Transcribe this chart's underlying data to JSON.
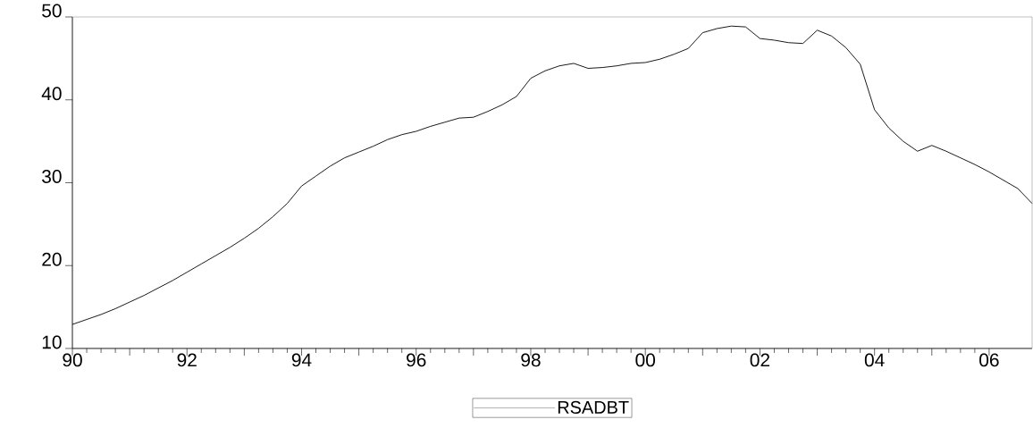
{
  "chart_data": {
    "type": "line",
    "x": [
      1990.0,
      1990.25,
      1990.5,
      1990.75,
      1991.0,
      1991.25,
      1991.5,
      1991.75,
      1992.0,
      1992.25,
      1992.5,
      1992.75,
      1993.0,
      1993.25,
      1993.5,
      1993.75,
      1994.0,
      1994.25,
      1994.5,
      1994.75,
      1995.0,
      1995.25,
      1995.5,
      1995.75,
      1996.0,
      1996.25,
      1996.5,
      1996.75,
      1997.0,
      1997.25,
      1997.5,
      1997.75,
      1998.0,
      1998.25,
      1998.5,
      1998.75,
      1999.0,
      1999.25,
      1999.5,
      1999.75,
      2000.0,
      2000.25,
      2000.5,
      2000.75,
      2001.0,
      2001.25,
      2001.5,
      2001.75,
      2002.0,
      2002.25,
      2002.5,
      2002.75,
      2003.0,
      2003.25,
      2003.5,
      2003.75,
      2004.0,
      2004.25,
      2004.5,
      2004.75,
      2005.0,
      2005.25,
      2005.5,
      2005.75,
      2006.0,
      2006.25,
      2006.5,
      2006.75
    ],
    "series": [
      {
        "name": "RSADBT",
        "color": "#000000",
        "values": [
          12.9,
          13.5,
          14.1,
          14.8,
          15.6,
          16.4,
          17.3,
          18.2,
          19.2,
          20.2,
          21.2,
          22.2,
          23.3,
          24.5,
          25.9,
          27.5,
          29.6,
          30.8,
          32.0,
          33.0,
          33.7,
          34.4,
          35.2,
          35.8,
          36.2,
          36.8,
          37.3,
          37.8,
          37.9,
          38.6,
          39.4,
          40.4,
          42.6,
          43.5,
          44.1,
          44.4,
          43.8,
          43.9,
          44.1,
          44.4,
          44.5,
          44.9,
          45.5,
          46.2,
          48.1,
          48.6,
          48.9,
          48.8,
          47.4,
          47.2,
          46.9,
          46.8,
          48.4,
          47.7,
          46.3,
          44.3,
          38.8,
          36.6,
          35.0,
          33.8,
          34.5,
          33.8,
          33.0,
          32.2,
          31.3,
          30.3,
          29.3,
          27.5
        ]
      }
    ],
    "xlim": [
      1990,
      2006.75
    ],
    "xticks": [
      {
        "value": 1990,
        "label": "90"
      },
      {
        "value": 1991,
        "label": null
      },
      {
        "value": 1992,
        "label": "92"
      },
      {
        "value": 1993,
        "label": null
      },
      {
        "value": 1994,
        "label": "94"
      },
      {
        "value": 1995,
        "label": null
      },
      {
        "value": 1996,
        "label": "96"
      },
      {
        "value": 1997,
        "label": null
      },
      {
        "value": 1998,
        "label": "98"
      },
      {
        "value": 1999,
        "label": null
      },
      {
        "value": 2000,
        "label": "00"
      },
      {
        "value": 2001,
        "label": null
      },
      {
        "value": 2002,
        "label": "02"
      },
      {
        "value": 2003,
        "label": null
      },
      {
        "value": 2004,
        "label": "04"
      },
      {
        "value": 2005,
        "label": null
      },
      {
        "value": 2006,
        "label": "06"
      }
    ],
    "ylim": [
      10,
      50
    ],
    "yticks": [
      10,
      20,
      30,
      40,
      50
    ],
    "grid": false,
    "legend": "bottom",
    "marker": "none",
    "line_style": "solid"
  }
}
